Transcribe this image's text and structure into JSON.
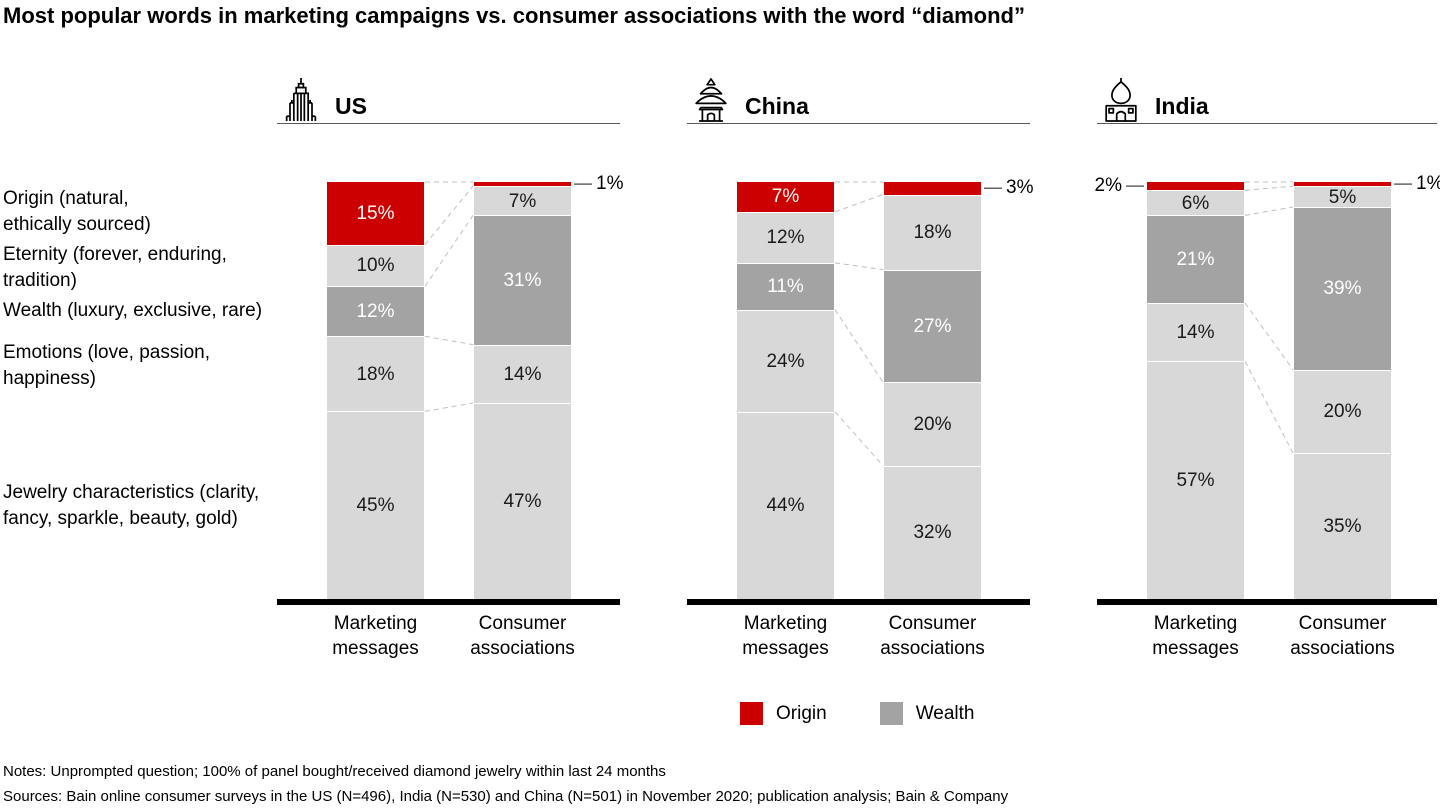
{
  "chart_data": {
    "type": "bar",
    "stacked": true,
    "unit": "%",
    "title": "Most popular words in marketing campaigns vs. consumer associations with the word “diamond”",
    "categories": [
      {
        "label": "Origin (natural,\nethically sourced)",
        "role": "origin"
      },
      {
        "label": "Eternity (forever, enduring,\ntradition)",
        "role": "light"
      },
      {
        "label": "Wealth (luxury, exclusive, rare)",
        "role": "wealth"
      },
      {
        "label": "Emotions (love, passion,\nhappiness)",
        "role": "light"
      },
      {
        "label": "Jewelry characteristics (clarity,\nfancy, sparkle, beauty, gold)",
        "role": "light"
      }
    ],
    "bar_labels": [
      "Marketing messages",
      "Consumer associations"
    ],
    "countries": [
      {
        "name": "US",
        "icon": "empire-state-building-icon",
        "marketing": [
          15,
          10,
          12,
          18,
          45
        ],
        "consumer": [
          1,
          7,
          31,
          14,
          47
        ],
        "origin_callout": {
          "marketing": null,
          "consumer": "right"
        }
      },
      {
        "name": "China",
        "icon": "temple-of-heaven-icon",
        "marketing": [
          7,
          12,
          11,
          24,
          44
        ],
        "consumer": [
          3,
          18,
          27,
          20,
          32
        ],
        "origin_callout": {
          "marketing": null,
          "consumer": "right"
        }
      },
      {
        "name": "India",
        "icon": "taj-mahal-icon",
        "marketing": [
          2,
          6,
          21,
          14,
          57
        ],
        "consumer": [
          1,
          5,
          39,
          20,
          35
        ],
        "origin_callout": {
          "marketing": "left",
          "consumer": "right"
        }
      }
    ],
    "legend": [
      {
        "label": "Origin",
        "color": "#cc0000"
      },
      {
        "label": "Wealth",
        "color": "#a3a3a3"
      }
    ],
    "colors": {
      "origin": "#cc0000",
      "wealth": "#a3a3a3",
      "light": "#d8d8d8"
    }
  },
  "notes": {
    "line1": "Notes: Unprompted question; 100% of panel bought/received diamond jewelry within last 24 months",
    "line2": "Sources: Bain online consumer surveys in the US (N=496), India (N=530) and China (N=501) in November 2020; publication analysis; Bain & Company"
  }
}
